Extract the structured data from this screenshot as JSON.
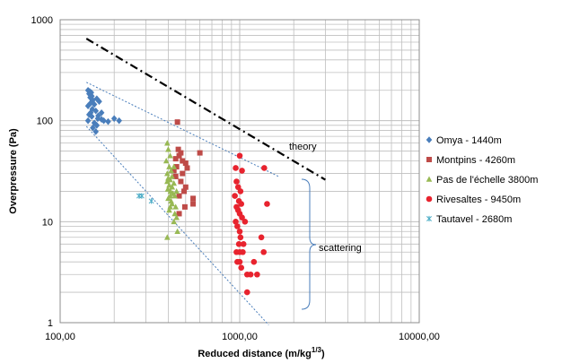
{
  "chart_data": {
    "type": "scatter",
    "title": "",
    "xlabel": "Reduced distance (m/kg",
    "xlabel_sup": "1/3",
    "xlabel_suffix": ")",
    "ylabel": "Overpressure (Pa)",
    "xscale": "log",
    "yscale": "log",
    "xlim": [
      100,
      10000
    ],
    "ylim": [
      1,
      1000
    ],
    "grid": true,
    "legend_position": "right",
    "x_tick_labels": [
      "100,00",
      "1000,00",
      "10000,00"
    ],
    "y_tick_labels": [
      "1",
      "10",
      "100",
      "1000"
    ],
    "series": [
      {
        "name": "Omya - 1440m",
        "marker": "diamond",
        "color": "#4a7ebb",
        "points": [
          [
            143,
            200
          ],
          [
            146,
            195
          ],
          [
            149,
            190
          ],
          [
            145,
            185
          ],
          [
            150,
            175
          ],
          [
            147,
            170
          ],
          [
            152,
            160
          ],
          [
            148,
            150
          ],
          [
            155,
            145
          ],
          [
            160,
            165
          ],
          [
            165,
            155
          ],
          [
            143,
            140
          ],
          [
            151,
            130
          ],
          [
            158,
            125
          ],
          [
            170,
            120
          ],
          [
            145,
            115
          ],
          [
            150,
            110
          ],
          [
            162,
            105
          ],
          [
            175,
            100
          ],
          [
            185,
            98
          ],
          [
            200,
            105
          ],
          [
            213,
            100
          ],
          [
            143,
            100
          ],
          [
            155,
            95
          ],
          [
            160,
            90
          ],
          [
            152,
            85
          ],
          [
            158,
            78
          ],
          [
            170,
            103
          ],
          [
            148,
            120
          ],
          [
            163,
            112
          ]
        ]
      },
      {
        "name": "Montpins - 4260m",
        "marker": "square",
        "color": "#be4b48",
        "points": [
          [
            450,
            97
          ],
          [
            455,
            52
          ],
          [
            460,
            45
          ],
          [
            470,
            48
          ],
          [
            480,
            40
          ],
          [
            440,
            42
          ],
          [
            445,
            35
          ],
          [
            500,
            38
          ],
          [
            510,
            34
          ],
          [
            600,
            48
          ],
          [
            430,
            32
          ],
          [
            480,
            30
          ],
          [
            470,
            25
          ],
          [
            500,
            22
          ],
          [
            440,
            28
          ],
          [
            460,
            18
          ],
          [
            550,
            17
          ],
          [
            495,
            14
          ],
          [
            460,
            12
          ],
          [
            550,
            15
          ],
          [
            490,
            20
          ]
        ]
      },
      {
        "name": "Pas de l'échelle 3800m",
        "marker": "triangle",
        "color": "#98b954",
        "points": [
          [
            395,
            60
          ],
          [
            400,
            52
          ],
          [
            410,
            45
          ],
          [
            390,
            40
          ],
          [
            405,
            35
          ],
          [
            415,
            32
          ],
          [
            420,
            28
          ],
          [
            400,
            27
          ],
          [
            410,
            26
          ],
          [
            395,
            25
          ],
          [
            430,
            24
          ],
          [
            405,
            23
          ],
          [
            420,
            22
          ],
          [
            398,
            21
          ],
          [
            412,
            20
          ],
          [
            425,
            19
          ],
          [
            435,
            18
          ],
          [
            400,
            17
          ],
          [
            415,
            16
          ],
          [
            420,
            15
          ],
          [
            410,
            14
          ],
          [
            405,
            13
          ],
          [
            435,
            12
          ],
          [
            445,
            11
          ],
          [
            430,
            10
          ],
          [
            440,
            14
          ],
          [
            410,
            18
          ],
          [
            420,
            22
          ],
          [
            395,
            30
          ],
          [
            445,
            20
          ],
          [
            430,
            35
          ],
          [
            395,
            7
          ],
          [
            450,
            8
          ]
        ]
      },
      {
        "name": "Rivesaltes - 9450m",
        "marker": "circle",
        "color": "#e8232e",
        "points": [
          [
            1000,
            45
          ],
          [
            950,
            34
          ],
          [
            1030,
            32
          ],
          [
            1370,
            34
          ],
          [
            960,
            25
          ],
          [
            980,
            22
          ],
          [
            1010,
            20
          ],
          [
            940,
            18
          ],
          [
            990,
            16
          ],
          [
            1020,
            15
          ],
          [
            1420,
            15
          ],
          [
            960,
            14
          ],
          [
            980,
            13
          ],
          [
            1000,
            12
          ],
          [
            1030,
            11
          ],
          [
            1070,
            10
          ],
          [
            950,
            10
          ],
          [
            970,
            9
          ],
          [
            1000,
            8
          ],
          [
            1010,
            7
          ],
          [
            990,
            6
          ],
          [
            1050,
            6
          ],
          [
            1320,
            7
          ],
          [
            960,
            5
          ],
          [
            1000,
            5
          ],
          [
            1040,
            5
          ],
          [
            1360,
            5
          ],
          [
            970,
            4
          ],
          [
            1000,
            4
          ],
          [
            1200,
            4
          ],
          [
            1020,
            3.5
          ],
          [
            1100,
            3
          ],
          [
            1150,
            3
          ],
          [
            1250,
            3
          ],
          [
            1100,
            2
          ]
        ]
      },
      {
        "name": "Tautavel - 2680m",
        "marker": "x",
        "color": "#4bacc6",
        "points": [
          [
            275,
            18
          ],
          [
            285,
            18
          ],
          [
            322,
            16
          ]
        ]
      }
    ],
    "annotations": [
      {
        "text": "theory"
      },
      {
        "text": "scattering"
      }
    ],
    "theory_line": {
      "x": [
        140,
        3000
      ],
      "y": [
        650,
        26
      ]
    },
    "envelope_upper": {
      "x": [
        140,
        1650
      ],
      "y": [
        240,
        28
      ]
    },
    "envelope_lower": {
      "x": [
        140,
        1450
      ],
      "y": [
        88,
        0.95
      ]
    }
  }
}
